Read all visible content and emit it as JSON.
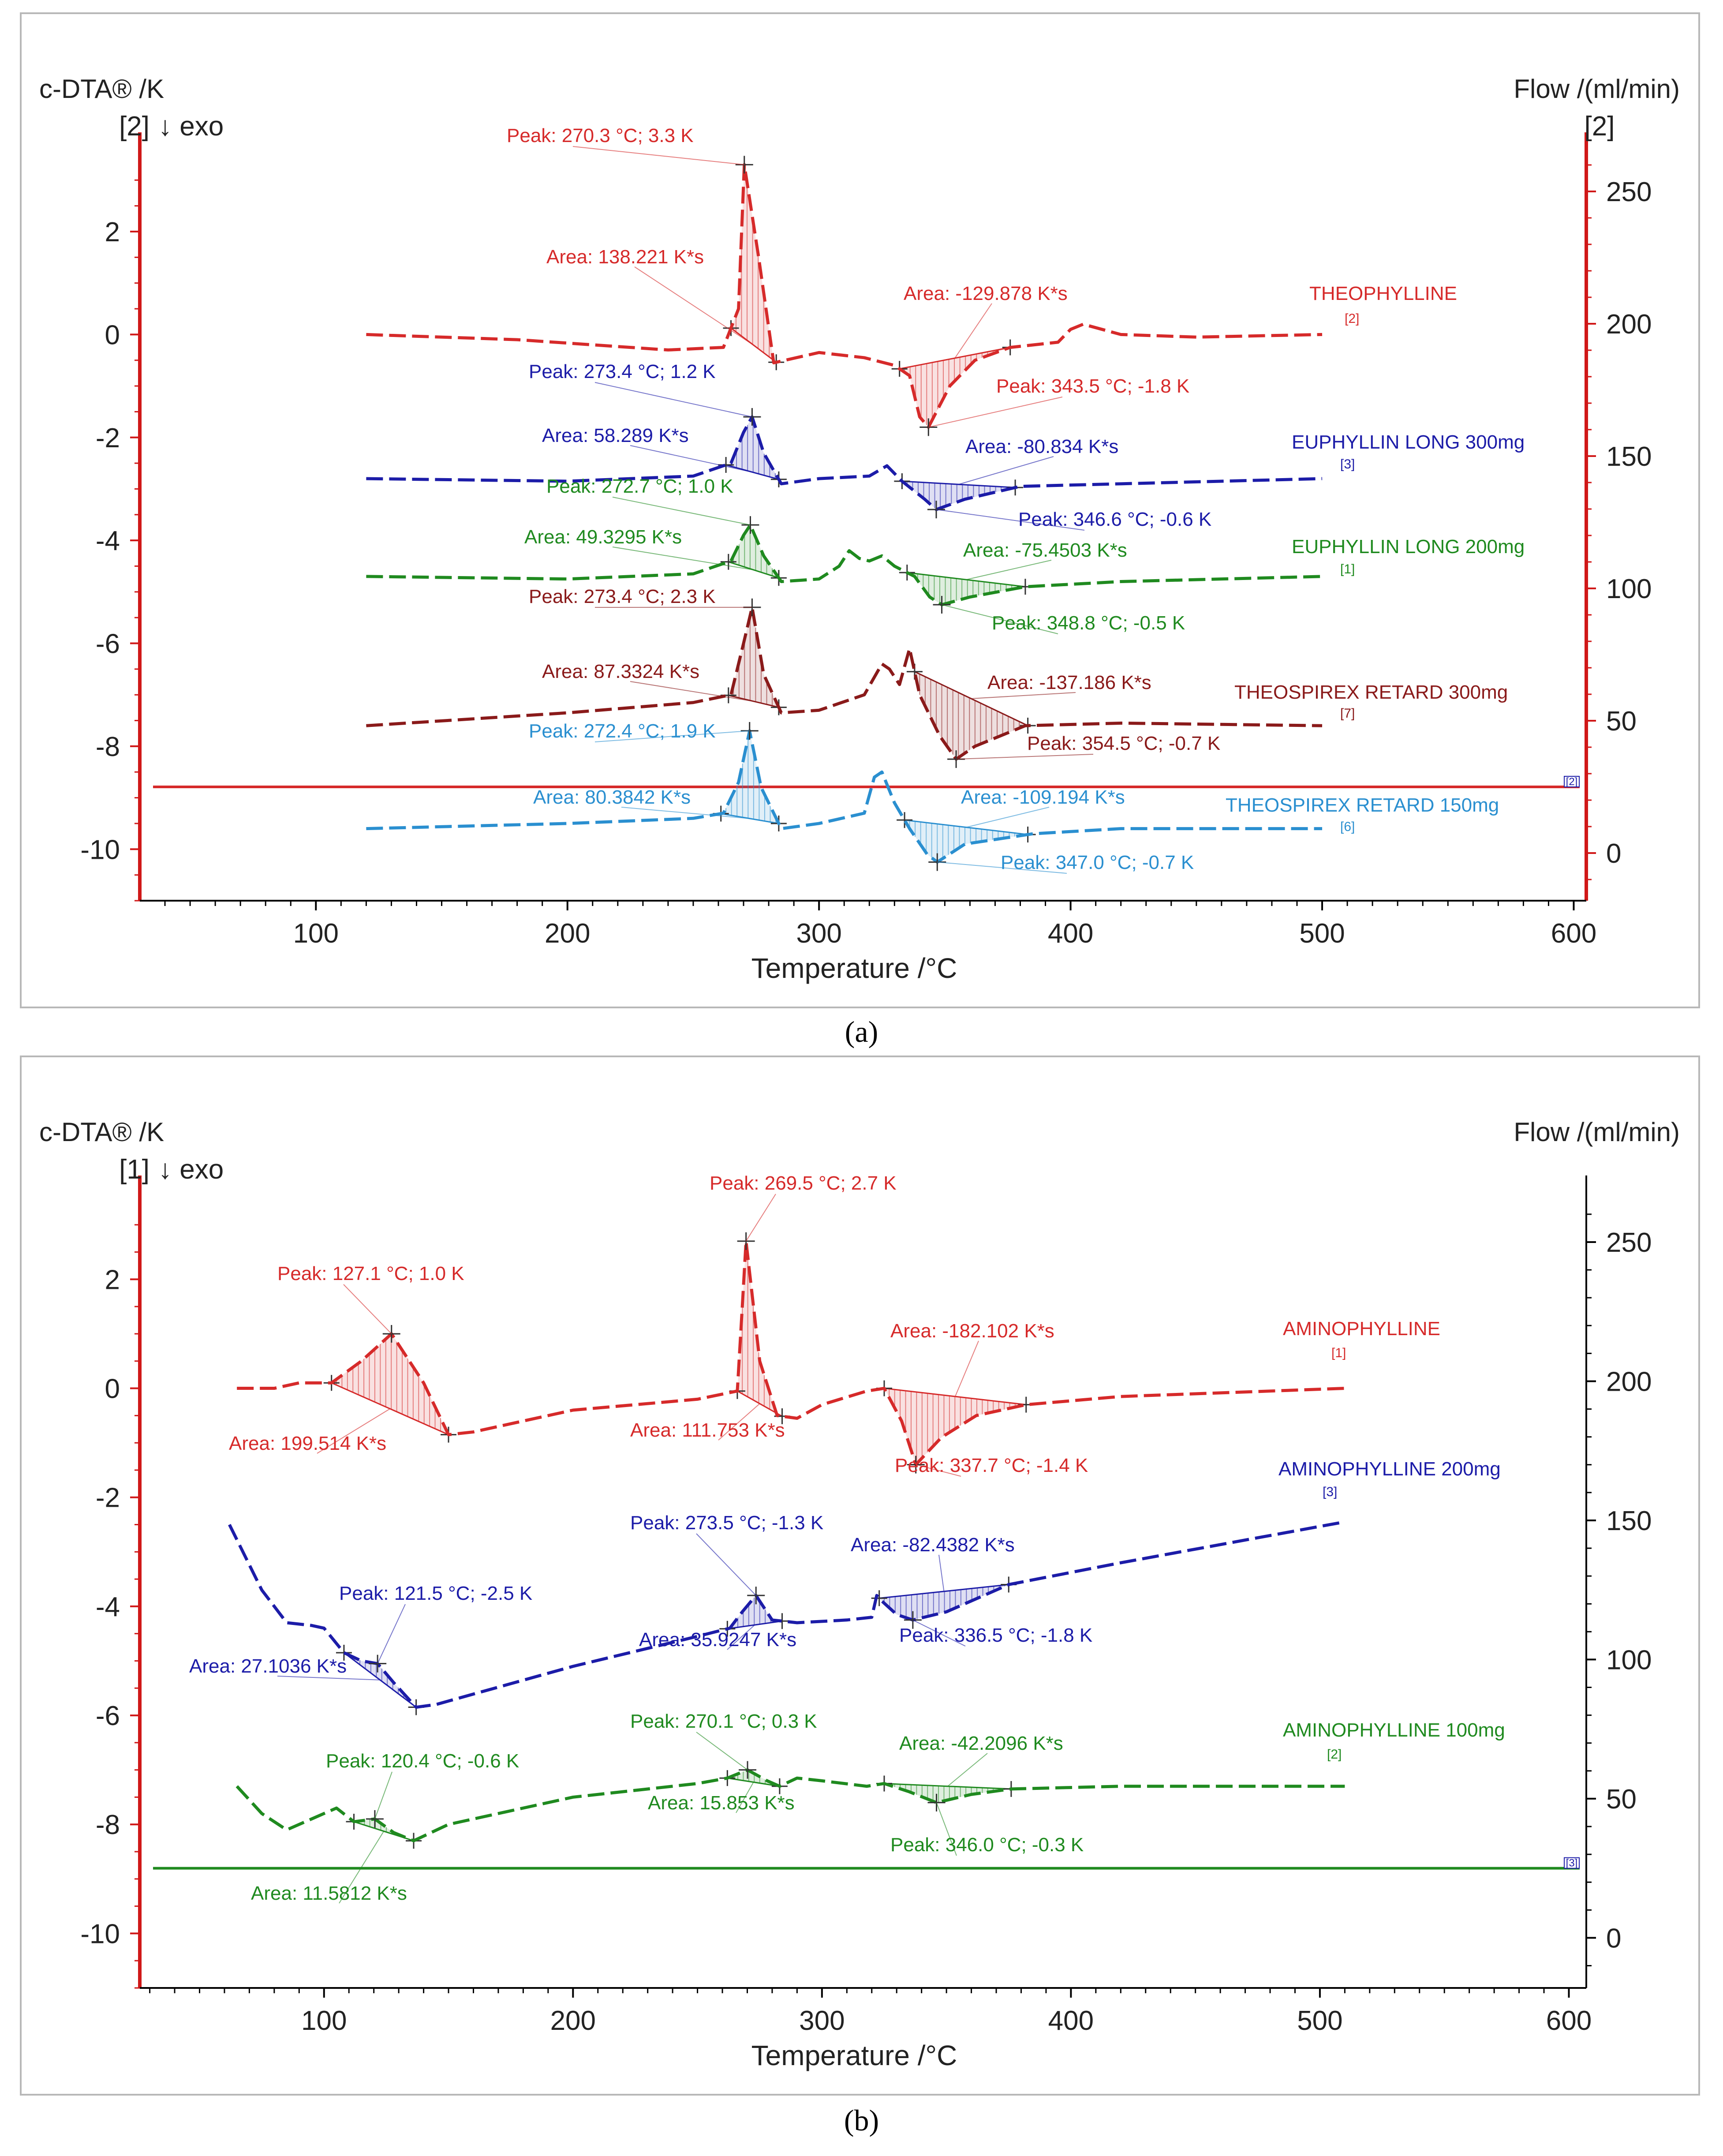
{
  "captions": {
    "a": "(a)",
    "b": "(b)"
  },
  "colors": {
    "theophylline": "#d62a2a",
    "euphyllin300": "#1c1ca8",
    "euphyllin200": "#1f8a1f",
    "theospirex300": "#8a1a1a",
    "theospirex150": "#2a8fd0",
    "aminophylline": "#d62a2a",
    "aminophylline200": "#1c1ca8",
    "aminophylline100": "#1f8a1f",
    "axis": "#d01818",
    "text": "#222222"
  },
  "chart_data": [
    {
      "type": "line",
      "panel": "a",
      "ylabel": "c-DTA® /K",
      "y2label": "Flow /(ml/min)",
      "xlabel": "Temperature /°C",
      "left_index": "[2]",
      "right_index": "[2]",
      "exo": "↓ exo",
      "xlim": [
        30,
        605
      ],
      "ylim": [
        -11,
        3.5
      ],
      "y2lim": [
        -18,
        264
      ],
      "xticks": [
        "100",
        "200",
        "300",
        "400",
        "500",
        "600"
      ],
      "yticks": [
        "2",
        "0",
        "-2",
        "-4",
        "-6",
        "-8",
        "-10"
      ],
      "y2ticks": [
        "250",
        "200",
        "150",
        "100",
        "50",
        "0"
      ],
      "flow_line": {
        "value": 25,
        "tag": "[2]"
      },
      "series": [
        {
          "name": "THEOPHYLLINE",
          "tag": "[2]",
          "color": "theophylline",
          "x": [
            120,
            180,
            240,
            262,
            268,
            270.3,
            276,
            282,
            300,
            318,
            330,
            336,
            340,
            343.5,
            352,
            362,
            376,
            395,
            400,
            405,
            420,
            450,
            500
          ],
          "y": [
            0,
            -0.1,
            -0.3,
            -0.25,
            0.5,
            3.3,
            1.5,
            -0.55,
            -0.35,
            -0.45,
            -0.6,
            -0.8,
            -1.6,
            -1.8,
            -1.0,
            -0.5,
            -0.25,
            -0.15,
            0.1,
            0.2,
            0.0,
            -0.05,
            0.0
          ],
          "peak": {
            "label": "Peak: 270.3 °C; 3.3 K",
            "x": 270.3,
            "y": 3.3
          },
          "peak2": {
            "label": "Peak: 343.5 °C; -1.8 K",
            "x": 343.5,
            "y": -1.8
          },
          "area1": {
            "label": "Area: 138.221 K*s",
            "x1": 265,
            "x2": 283
          },
          "area2": {
            "label": "Area: -129.878 K*s",
            "x1": 332,
            "x2": 376
          }
        },
        {
          "name": "EUPHYLLIN LONG 300mg",
          "tag": "[3]",
          "color": "euphyllin300",
          "x": [
            120,
            200,
            250,
            265,
            270,
            273.4,
            278,
            285,
            300,
            320,
            327,
            333,
            342,
            346.6,
            358,
            380,
            420,
            500
          ],
          "y": [
            -2.8,
            -2.85,
            -2.75,
            -2.5,
            -1.9,
            -1.6,
            -2.3,
            -2.9,
            -2.8,
            -2.75,
            -2.55,
            -2.85,
            -3.2,
            -3.4,
            -3.2,
            -2.95,
            -2.9,
            -2.8
          ],
          "peak": {
            "label": "Peak: 273.4 °C; 1.2 K",
            "x": 273.4,
            "y": -1.6
          },
          "peak2": {
            "label": "Peak: 346.6 °C; -0.6 K",
            "x": 346.6,
            "y": -3.4
          },
          "area1": {
            "label": "Area: 58.289 K*s",
            "x1": 263,
            "x2": 284
          },
          "area2": {
            "label": "Area: -80.834 K*s",
            "x1": 333,
            "x2": 378
          }
        },
        {
          "name": "EUPHYLLIN LONG 200mg",
          "tag": "[1]",
          "color": "euphyllin200",
          "x": [
            120,
            200,
            250,
            265,
            270,
            272.7,
            278,
            285,
            300,
            308,
            312,
            316,
            320,
            325,
            330,
            338,
            344,
            348.8,
            360,
            382,
            420,
            500
          ],
          "y": [
            -4.7,
            -4.75,
            -4.65,
            -4.4,
            -3.9,
            -3.7,
            -4.3,
            -4.8,
            -4.75,
            -4.5,
            -4.2,
            -4.35,
            -4.4,
            -4.3,
            -4.5,
            -4.7,
            -5.1,
            -5.25,
            -5.1,
            -4.9,
            -4.8,
            -4.7
          ],
          "peak": {
            "label": "Peak: 272.7 °C; 1.0 K",
            "x": 272.7,
            "y": -3.7
          },
          "peak2": {
            "label": "Peak: 348.8 °C; -0.5 K",
            "x": 348.8,
            "y": -5.25
          },
          "area1": {
            "label": "Area: 49.3295 K*s",
            "x1": 264,
            "x2": 284
          },
          "area2": {
            "label": "Area: -75.4503 K*s",
            "x1": 335,
            "x2": 382
          }
        },
        {
          "name": "THEOSPIREX RETARD 300mg",
          "tag": "[7]",
          "color": "theospirex300",
          "x": [
            120,
            200,
            250,
            265,
            270,
            273.4,
            278,
            285,
            300,
            318,
            325,
            328,
            332,
            336,
            340,
            348,
            354.5,
            362,
            382,
            420,
            500
          ],
          "y": [
            -7.6,
            -7.35,
            -7.15,
            -7.0,
            -6.0,
            -5.3,
            -6.6,
            -7.35,
            -7.3,
            -7.0,
            -6.4,
            -6.5,
            -6.8,
            -6.1,
            -7.0,
            -7.8,
            -8.25,
            -8.0,
            -7.6,
            -7.55,
            -7.6
          ],
          "peak": {
            "label": "Peak: 273.4 °C; 2.3 K",
            "x": 273.4,
            "y": -5.3
          },
          "peak2": {
            "label": "Peak: 354.5 °C; -0.7 K",
            "x": 354.5,
            "y": -8.25
          },
          "area1": {
            "label": "Area: 87.3324 K*s",
            "x1": 264,
            "x2": 284
          },
          "area2": {
            "label": "Area: -137.186 K*s",
            "x1": 338,
            "x2": 383
          }
        },
        {
          "name": "THEOSPIREX RETARD 150mg",
          "tag": "[6]",
          "color": "theospirex150",
          "x": [
            120,
            200,
            250,
            262,
            268,
            272.4,
            277,
            285,
            300,
            318,
            322,
            325,
            330,
            336,
            343,
            347,
            358,
            385,
            420,
            500
          ],
          "y": [
            -9.6,
            -9.5,
            -9.4,
            -9.3,
            -8.7,
            -7.7,
            -8.8,
            -9.6,
            -9.5,
            -9.3,
            -8.6,
            -8.5,
            -9.1,
            -9.6,
            -10.1,
            -10.25,
            -9.9,
            -9.7,
            -9.6,
            -9.6
          ],
          "peak": {
            "label": "Peak: 272.4 °C; 1.9 K",
            "x": 272.4,
            "y": -7.7
          },
          "peak2": {
            "label": "Peak: 347.0 °C; -0.7 K",
            "x": 347.0,
            "y": -10.25
          },
          "area1": {
            "label": "Area: 80.3842 K*s",
            "x1": 261,
            "x2": 284
          },
          "area2": {
            "label": "Area: -109.194 K*s",
            "x1": 334,
            "x2": 383
          }
        }
      ]
    },
    {
      "type": "line",
      "panel": "b",
      "ylabel": "c-DTA® /K",
      "y2label": "Flow /(ml/min)",
      "xlabel": "Temperature /°C",
      "left_index": "[1]",
      "right_index": "",
      "exo": "↓ exo",
      "xlim": [
        26,
        607
      ],
      "ylim": [
        -11,
        3.5
      ],
      "y2lim": [
        -18,
        266
      ],
      "xticks": [
        "100",
        "200",
        "300",
        "400",
        "500",
        "600"
      ],
      "yticks": [
        "2",
        "0",
        "-2",
        "-4",
        "-6",
        "-8",
        "-10"
      ],
      "y2ticks": [
        "250",
        "200",
        "150",
        "100",
        "50",
        "0"
      ],
      "flow_line": {
        "value": 25,
        "tag": "[3]"
      },
      "series": [
        {
          "name": "AMINOPHYLLINE",
          "tag": "[1]",
          "color": "aminophylline",
          "x": [
            65,
            80,
            90,
            103,
            115,
            127.1,
            140,
            150,
            160,
            200,
            250,
            266,
            268,
            269.5,
            275,
            282,
            290,
            300,
            318,
            325,
            332,
            337.7,
            348,
            362,
            382,
            420,
            510
          ],
          "y": [
            0,
            0.0,
            0.1,
            0.1,
            0.5,
            1.0,
            0.1,
            -0.85,
            -0.8,
            -0.4,
            -0.2,
            -0.05,
            1.5,
            2.7,
            0.5,
            -0.5,
            -0.55,
            -0.3,
            -0.05,
            0.0,
            -0.6,
            -1.4,
            -0.9,
            -0.5,
            -0.3,
            -0.15,
            0.0
          ],
          "peak": {
            "label": "Peak: 269.5 °C; 2.7 K",
            "x": 269.5,
            "y": 2.7
          },
          "peak2": {
            "label": "Peak: 337.7 °C; -1.4 K",
            "x": 337.7,
            "y": -1.4
          },
          "peak3": {
            "label": "Peak: 127.1 °C; 1.0 K",
            "x": 127.1,
            "y": 1.0
          },
          "area1": {
            "label": "Area: 111.753 K*s",
            "x1": 266,
            "x2": 284
          },
          "area2": {
            "label": "Area: -182.102 K*s",
            "x1": 325,
            "x2": 382
          },
          "area3": {
            "label": "Area: 199.514 K*s",
            "x1": 103,
            "x2": 150
          }
        },
        {
          "name": "AMINOPHYLLINE 200mg",
          "tag": "[3]",
          "color": "aminophylline200",
          "x": [
            62,
            75,
            85,
            95,
            100,
            108,
            115,
            121.5,
            128,
            137,
            145,
            200,
            250,
            263,
            268,
            273.5,
            280,
            290,
            310,
            320,
            322,
            324,
            330,
            336.5,
            350,
            375,
            420,
            510
          ],
          "y": [
            -2.5,
            -3.7,
            -4.3,
            -4.35,
            -4.4,
            -4.85,
            -5.0,
            -5.05,
            -5.4,
            -5.85,
            -5.8,
            -5.1,
            -4.55,
            -4.4,
            -4.1,
            -3.8,
            -4.25,
            -4.3,
            -4.25,
            -4.2,
            -3.8,
            -3.9,
            -4.15,
            -4.25,
            -4.1,
            -3.6,
            -3.2,
            -2.45
          ],
          "peak": {
            "label": "Peak: 273.5 °C; -1.3 K",
            "x": 273.5,
            "y": -3.8
          },
          "peak2": {
            "label": "Peak: 336.5 °C; -1.8 K",
            "x": 336.5,
            "y": -4.25
          },
          "peak3": {
            "label": "Peak: 121.5 °C; -2.5 K",
            "x": 121.5,
            "y": -5.05
          },
          "area1": {
            "label": "Area: 35.9247 K*s",
            "x1": 262,
            "x2": 284
          },
          "area2": {
            "label": "Area: -82.4382 K*s",
            "x1": 323,
            "x2": 375
          },
          "area3": {
            "label": "Area: 27.1036 K*s",
            "x1": 108,
            "x2": 137
          }
        },
        {
          "name": "AMINOPHYLLINE 100mg",
          "tag": "[2]",
          "color": "aminophylline100",
          "x": [
            65,
            75,
            85,
            95,
            105,
            112,
            120.4,
            128,
            136,
            150,
            200,
            250,
            262,
            270.1,
            278,
            283,
            290,
            300,
            318,
            325,
            335,
            346,
            360,
            376,
            420,
            510
          ],
          "y": [
            -7.3,
            -7.8,
            -8.1,
            -7.9,
            -7.7,
            -7.95,
            -7.9,
            -8.15,
            -8.3,
            -8.0,
            -7.5,
            -7.25,
            -7.15,
            -7.0,
            -7.2,
            -7.3,
            -7.15,
            -7.2,
            -7.3,
            -7.25,
            -7.4,
            -7.6,
            -7.45,
            -7.35,
            -7.3,
            -7.3
          ],
          "peak": {
            "label": "Peak: 270.1 °C; 0.3 K",
            "x": 270.1,
            "y": -7.0
          },
          "peak2": {
            "label": "Peak: 346.0 °C; -0.3 K",
            "x": 346.0,
            "y": -7.6
          },
          "peak3": {
            "label": "Peak: 120.4 °C; -0.6 K",
            "x": 120.4,
            "y": -7.9
          },
          "area1": {
            "label": "Area: 15.853 K*s",
            "x1": 262,
            "x2": 283
          },
          "area2": {
            "label": "Area: -42.2096 K*s",
            "x1": 325,
            "x2": 376
          },
          "area3": {
            "label": "Area: 11.5812 K*s",
            "x1": 112,
            "x2": 136
          }
        }
      ]
    }
  ]
}
